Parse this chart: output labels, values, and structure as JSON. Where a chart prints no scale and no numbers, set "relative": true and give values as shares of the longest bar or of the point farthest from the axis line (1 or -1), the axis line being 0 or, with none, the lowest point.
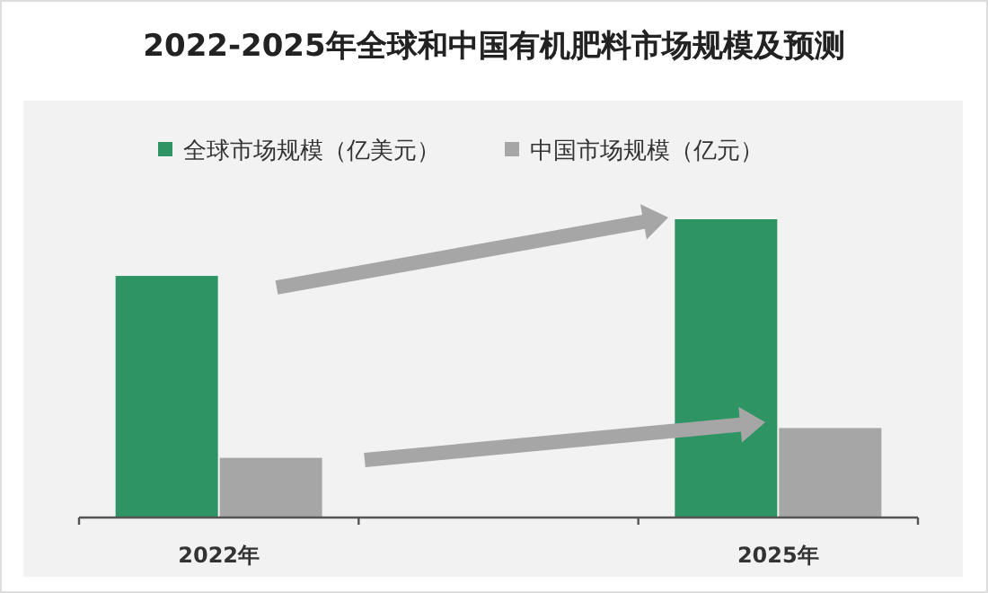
{
  "chart_data": {
    "type": "bar",
    "title": "2022-2025年全球和中国有机肥料市场规模及预测",
    "relative": true,
    "legend": "top",
    "categories": [
      "2022年",
      null,
      "2025年"
    ],
    "series": [
      {
        "name": "全球市场规模（亿美元）",
        "color": "#2e9464",
        "values": [
          0.81,
          null,
          1
        ]
      },
      {
        "name": "中国市场规模（亿元）",
        "color": "#a6a6a6",
        "values": [
          0.2,
          null,
          0.3
        ]
      }
    ]
  }
}
